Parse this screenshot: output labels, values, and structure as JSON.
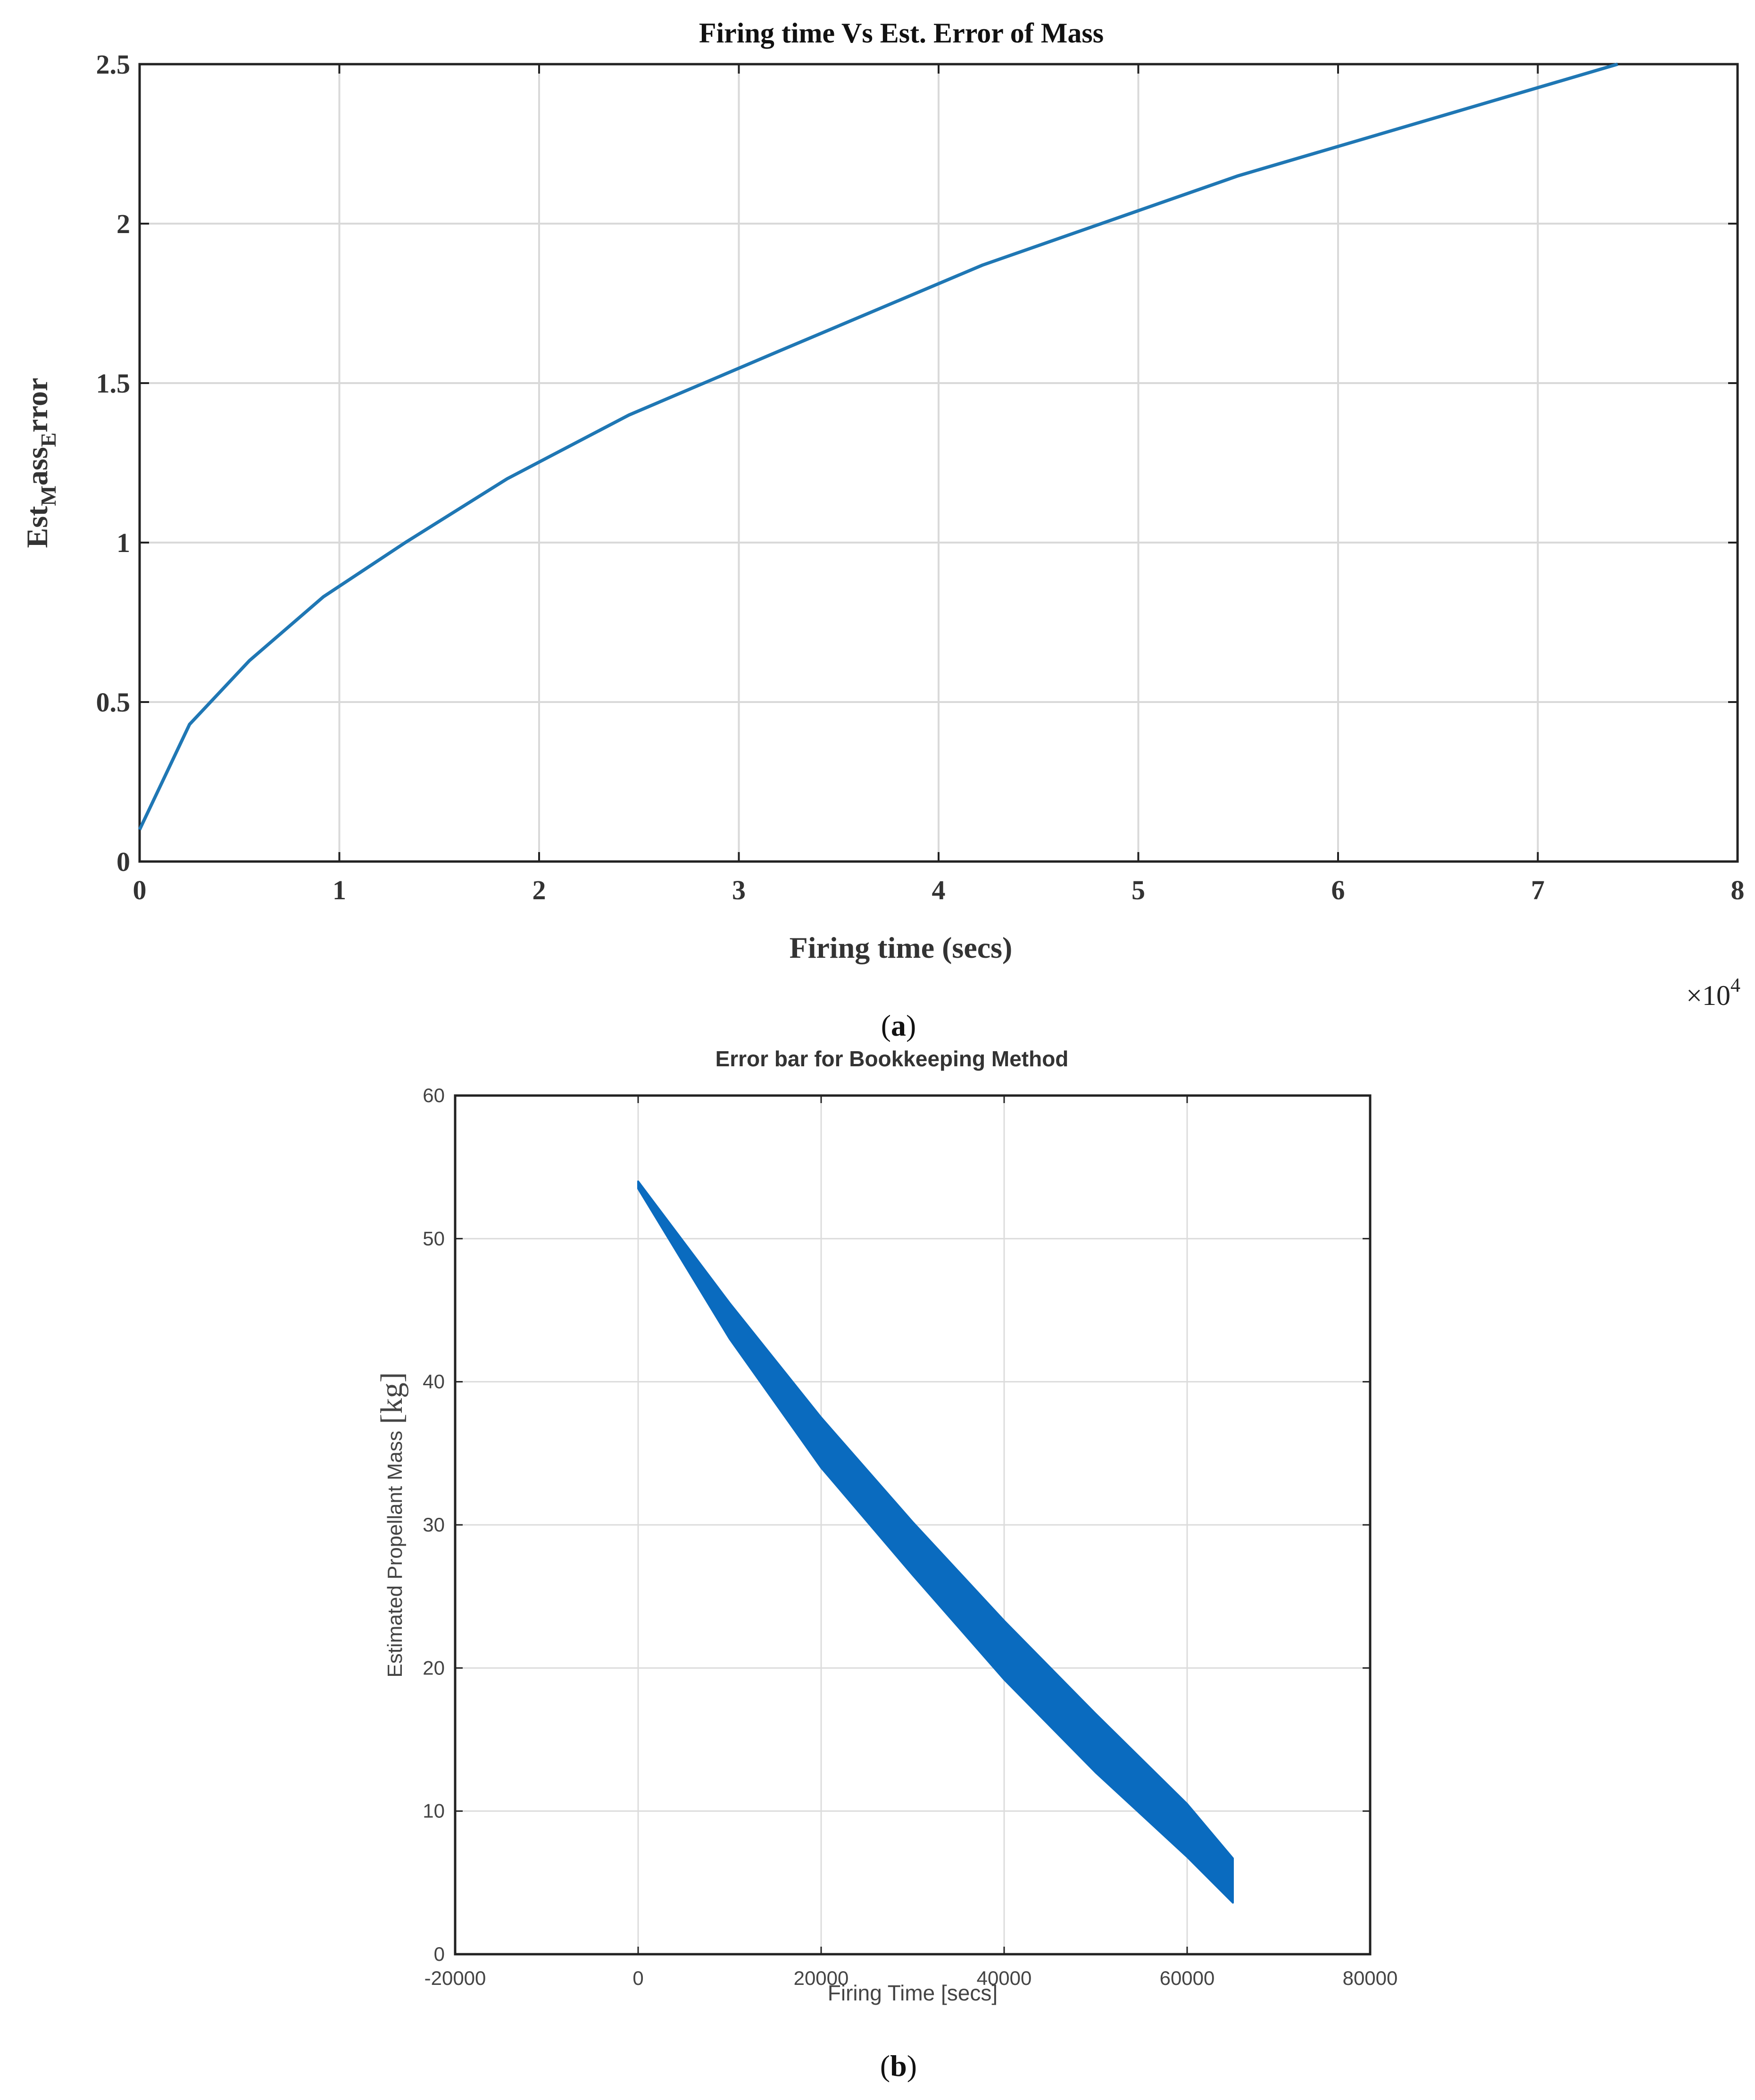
{
  "charts": [
    {
      "panel_label": {
        "open": "(",
        "letter": "a",
        "close": ")"
      },
      "chart_data": {
        "type": "line",
        "title": "Firing time Vs Est. Error of Mass",
        "xlabel": "Firing time (secs)",
        "ylabel": {
          "base": "Est",
          "sub1": "M",
          "mid": "ass",
          "sub2": "E",
          "end": "rror"
        },
        "x_multiplier": {
          "prefix": "×10",
          "exp": "4"
        },
        "xlim": [
          0,
          8
        ],
        "ylim": [
          0,
          2.5
        ],
        "x_ticks": [
          "0",
          "1",
          "2",
          "3",
          "4",
          "5",
          "6",
          "7",
          "8"
        ],
        "y_ticks": [
          "0",
          "0.5",
          "1",
          "1.5",
          "2",
          "2.5"
        ],
        "x_tick_values": [
          0,
          1,
          2,
          3,
          4,
          5,
          6,
          7,
          8
        ],
        "y_tick_values": [
          0,
          0.5,
          1,
          1.5,
          2,
          2.5
        ],
        "grid": true,
        "series": [
          {
            "color": "#1f77b4",
            "x": [
              0,
              0.25,
              0.55,
              0.92,
              1.33,
              1.84,
              2.45,
              3.2,
              4.22,
              5.5,
              7.4
            ],
            "y": [
              0.1,
              0.43,
              0.63,
              0.83,
              1.0,
              1.2,
              1.4,
              1.6,
              1.87,
              2.15,
              2.5
            ]
          }
        ]
      }
    },
    {
      "panel_label": {
        "open": "(",
        "letter": "b",
        "close": ")"
      },
      "chart_data": {
        "type": "area",
        "title": "Error bar for Bookkeeping Method",
        "xlabel": "Firing Time [secs]",
        "ylabel": {
          "text": "Estimated Propellant Mass",
          "unit": "[kg]"
        },
        "xlim": [
          -20000,
          80000
        ],
        "ylim": [
          0,
          60
        ],
        "x_ticks": [
          "-20000",
          "0",
          "20000",
          "40000",
          "60000",
          "80000"
        ],
        "y_ticks": [
          "0",
          "10",
          "20",
          "30",
          "40",
          "50",
          "60"
        ],
        "x_tick_values": [
          -20000,
          0,
          20000,
          40000,
          60000,
          80000
        ],
        "y_tick_values": [
          0,
          10,
          20,
          30,
          40,
          50,
          60
        ],
        "grid": true,
        "series": [
          {
            "color": "#0a6bbf",
            "x": [
              0,
              10000,
              20000,
              30000,
              40000,
              50000,
              60000,
              65000
            ],
            "upper": [
              54,
              45.5,
              37.5,
              30.2,
              23.3,
              16.8,
              10.5,
              6.7
            ],
            "lower": [
              53.5,
              43,
              34,
              26.5,
              19.2,
              12.7,
              6.8,
              3.6
            ]
          }
        ]
      }
    }
  ]
}
